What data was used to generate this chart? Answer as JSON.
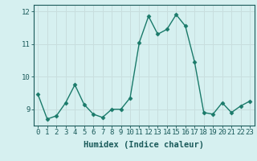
{
  "x": [
    0,
    1,
    2,
    3,
    4,
    5,
    6,
    7,
    8,
    9,
    10,
    11,
    12,
    13,
    14,
    15,
    16,
    17,
    18,
    19,
    20,
    21,
    22,
    23
  ],
  "y": [
    9.45,
    8.7,
    8.8,
    9.2,
    9.75,
    9.15,
    8.85,
    8.75,
    9.0,
    9.0,
    9.35,
    11.05,
    11.85,
    11.3,
    11.45,
    11.9,
    11.55,
    10.45,
    8.9,
    8.85,
    9.2,
    8.9,
    9.1,
    9.25
  ],
  "line_color": "#1a7a6a",
  "marker": "D",
  "marker_size": 2.5,
  "bg_color": "#d6f0f0",
  "grid_color": "#c8dede",
  "xlabel": "Humidex (Indice chaleur)",
  "ylim": [
    8.5,
    12.2
  ],
  "yticks": [
    9,
    10,
    11,
    12
  ],
  "xticks": [
    0,
    1,
    2,
    3,
    4,
    5,
    6,
    7,
    8,
    9,
    10,
    11,
    12,
    13,
    14,
    15,
    16,
    17,
    18,
    19,
    20,
    21,
    22,
    23
  ],
  "xlabel_fontsize": 7.5,
  "tick_fontsize": 6.5,
  "tick_color": "#1a5a5a",
  "axis_color": "#1a5a5a",
  "linewidth": 1.0
}
